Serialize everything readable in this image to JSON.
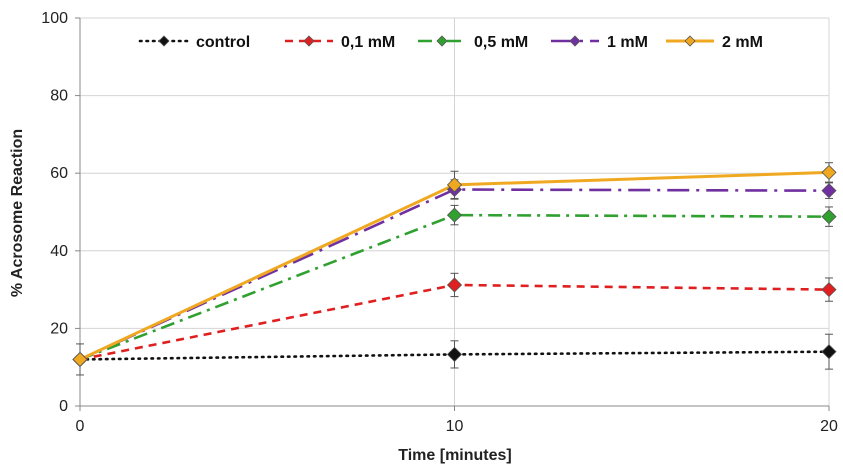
{
  "chart_data": {
    "type": "line",
    "title": "",
    "xlabel": "Time [minutes]",
    "ylabel": "% Acrosome Reaction",
    "x": [
      0,
      10,
      20
    ],
    "x_ticks": [
      "0",
      "10",
      "20"
    ],
    "ylim": [
      0,
      100
    ],
    "y_ticks": [
      "0",
      "20",
      "40",
      "60",
      "80",
      "100"
    ],
    "grid": true,
    "legend_position": "top",
    "series": [
      {
        "name": "control",
        "values": [
          12,
          13.3,
          14
        ],
        "errors": [
          4,
          3.5,
          4.5
        ],
        "color": "#111111",
        "dash": "dotted"
      },
      {
        "name": "0,1 mM",
        "values": [
          12,
          31.2,
          30
        ],
        "errors": [
          0,
          3,
          3
        ],
        "color": "#e02020",
        "dash": "dashed"
      },
      {
        "name": "0,5 mM",
        "values": [
          12,
          49.2,
          48.8
        ],
        "errors": [
          0,
          2.5,
          2.5
        ],
        "color": "#30a030",
        "dash": "dashdot"
      },
      {
        "name": "1 mM",
        "values": [
          12,
          55.8,
          55.5
        ],
        "errors": [
          0,
          2.5,
          2
        ],
        "color": "#7030a0",
        "dash": "longdashdot"
      },
      {
        "name": "2 mM",
        "values": [
          12,
          57,
          60.2
        ],
        "errors": [
          0,
          3.5,
          2.5
        ],
        "color": "#f0a820",
        "dash": "solid"
      }
    ]
  }
}
